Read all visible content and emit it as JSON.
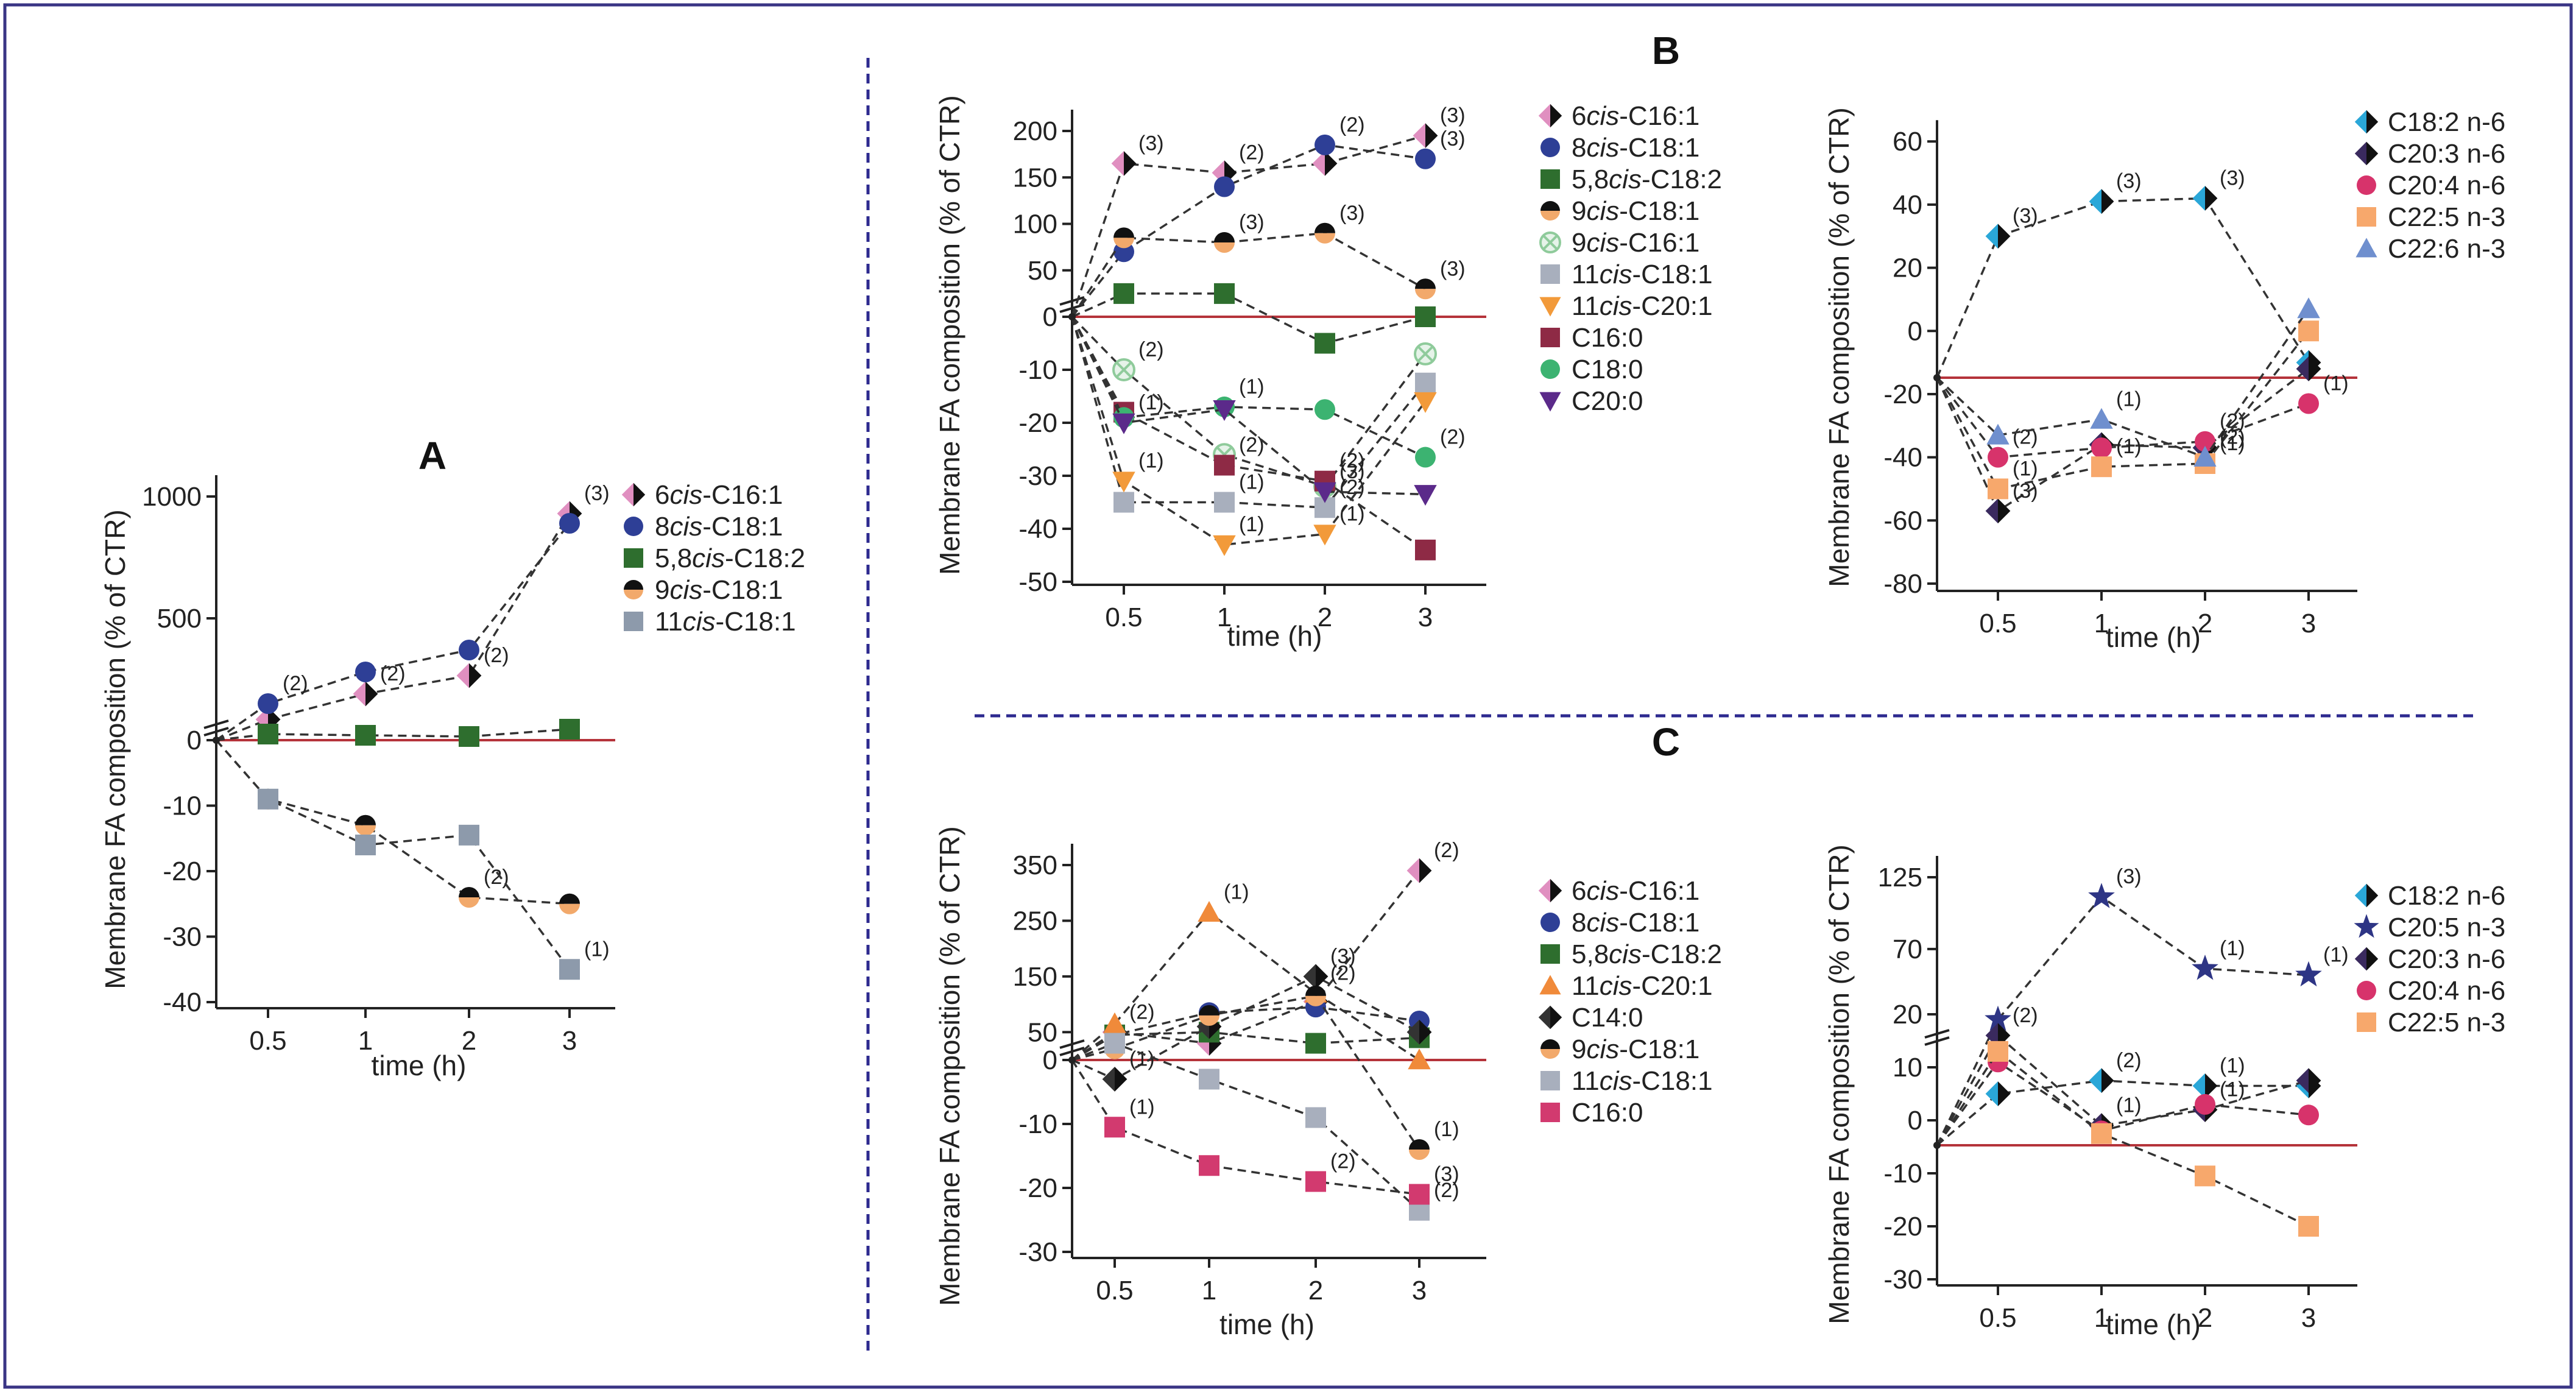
{
  "figure": {
    "panel_letters": [
      "A",
      "B",
      "C"
    ]
  },
  "chart_data": [
    {
      "id": "A",
      "type": "line",
      "panel_label": "A",
      "xlabel": "time (h)",
      "ylabel": "Membrane FA composition (% of CTR)",
      "categories": [
        "0.5",
        "1",
        "2",
        "3"
      ],
      "y_upper_ticks": [
        0,
        500,
        1000
      ],
      "y_lower_ticks": [
        -10,
        -20,
        -30,
        -40
      ],
      "upper_range": [
        0,
        1000
      ],
      "lower_range": [
        0,
        -40
      ],
      "color_scheme": "half",
      "series": [
        {
          "name": "6cis-C16:1",
          "marker": "diamond",
          "color": "#e08fc0",
          "values": [
            85,
            190,
            265,
            930
          ],
          "annotations": {
            "1": "(2)",
            "2": "(2)",
            "3": "(3)"
          }
        },
        {
          "name": "8cis-C18:1",
          "marker": "circle",
          "color": "#2e3f96",
          "values": [
            150,
            280,
            370,
            890
          ],
          "annotations": {
            "0": "(2)"
          }
        },
        {
          "name": "5,8cis-C18:2",
          "marker": "square",
          "color": "#2e6e2e",
          "values": [
            25,
            20,
            15,
            45
          ],
          "annotations": {}
        },
        {
          "name": "9cis-C18:1",
          "marker": "halfcircle",
          "color": "#f2a96b",
          "values": [
            -9,
            -13,
            -24,
            -25
          ],
          "annotations": {
            "2": "(2)"
          }
        },
        {
          "name": "11cis-C18:1",
          "marker": "square",
          "color": "#8d9aab",
          "values": [
            -9,
            -16,
            -14.5,
            -35
          ],
          "annotations": {
            "3": "(1)"
          }
        }
      ]
    },
    {
      "id": "B1",
      "type": "line",
      "panel_label": "B",
      "xlabel": "time (h)",
      "ylabel": "Membrane FA composition (% of CTR)",
      "categories": [
        "0.5",
        "1",
        "2",
        "3"
      ],
      "y_upper_ticks": [
        0,
        50,
        100,
        150,
        200
      ],
      "y_lower_ticks": [
        -10,
        -20,
        -30,
        -40,
        -50
      ],
      "upper_range": [
        0,
        200
      ],
      "lower_range": [
        0,
        -50
      ],
      "color_scheme": "half",
      "series": [
        {
          "name": "6cis-C16:1",
          "marker": "diamond",
          "color": "#e08fc0",
          "values": [
            165,
            155,
            165,
            195
          ],
          "annotations": {
            "0": "(3)",
            "1": "(2)",
            "3": "(3)"
          }
        },
        {
          "name": "8cis-C18:1",
          "marker": "circle",
          "color": "#2e3f96",
          "values": [
            70,
            140,
            185,
            170
          ],
          "annotations": {
            "2": "(2)",
            "3": "(3)"
          }
        },
        {
          "name": "5,8cis-C18:2",
          "marker": "square",
          "color": "#2e6e2e",
          "values": [
            25,
            25,
            -5,
            0
          ],
          "annotations": {}
        },
        {
          "name": "9cis-C18:1",
          "marker": "halfcircle",
          "color": "#f2a96b",
          "values": [
            85,
            80,
            90,
            30
          ],
          "annotations": {
            "1": "(3)",
            "2": "(3)",
            "3": "(3)"
          }
        },
        {
          "name": "9cis-C16:1",
          "marker": "xcircle",
          "color": "#8fcb9b",
          "values": [
            -10,
            -26,
            -32,
            -7
          ],
          "annotations": {
            "0": "(2)"
          }
        },
        {
          "name": "11cis-C18:1",
          "marker": "square",
          "color": "#a8afbd",
          "values": [
            -35,
            -35,
            -36,
            -12.5
          ],
          "annotations": {
            "1": "(1)",
            "2": "(2)"
          }
        },
        {
          "name": "11cis-C20:1",
          "marker": "triangledown",
          "color": "#f29a3a",
          "values": [
            -31,
            -43,
            -41,
            -16
          ],
          "annotations": {
            "0": "(1)",
            "1": "(1)",
            "2": "(1)"
          }
        },
        {
          "name": "C16:0",
          "marker": "square",
          "color": "#8e2a45",
          "values": [
            -18,
            -28,
            -31,
            -44
          ],
          "annotations": {
            "1": "(2)",
            "2": "(2)"
          }
        },
        {
          "name": "C18:0",
          "marker": "circle",
          "color": "#3cb371",
          "values": [
            -19,
            -17,
            -17.5,
            -26.5
          ],
          "annotations": {
            "1": "(1)",
            "3": "(2)"
          }
        },
        {
          "name": "C20:0",
          "marker": "triangledown",
          "color": "#5b2a8a",
          "values": [
            -20,
            -17.5,
            -33,
            -33.5
          ],
          "annotations": {
            "0": "(1)",
            "2": "(3)"
          }
        }
      ]
    },
    {
      "id": "B2",
      "type": "line",
      "xlabel": "time (h)",
      "ylabel": "Membrane FA composition (% of CTR)",
      "categories": [
        "0.5",
        "1",
        "2",
        "3"
      ],
      "y_ticks": [
        60,
        40,
        20,
        0,
        -20,
        -40,
        -60,
        -80
      ],
      "ylim": [
        -80,
        72
      ],
      "color_scheme": "half",
      "series": [
        {
          "name": "C18:2 n-6",
          "marker": "diamond",
          "color": "#2aa7d8",
          "values": [
            30,
            41,
            42,
            -10
          ],
          "annotations": {
            "0": "(3)",
            "1": "(3)",
            "2": "(3)"
          }
        },
        {
          "name": "C20:3 n-6",
          "marker": "diamond",
          "color": "#3a2a5e",
          "values": [
            -57,
            -36,
            -37,
            -12
          ],
          "annotations": {
            "0": "(3)"
          }
        },
        {
          "name": "C20:4 n-6",
          "marker": "circle",
          "color": "#d7336b",
          "values": [
            -40,
            -37,
            -35,
            -23
          ],
          "annotations": {
            "0": "(2)",
            "2": "(2)",
            "3": "(1)"
          }
        },
        {
          "name": "C22:5 n-3",
          "marker": "square",
          "color": "#f7a86c",
          "values": [
            -50,
            -43,
            -42,
            0
          ],
          "annotations": {
            "0": "(1)",
            "1": "(1)",
            "2": "(1)"
          }
        },
        {
          "name": "C22:6 n-3",
          "marker": "triangleup",
          "color": "#6f8fce",
          "values": [
            -33,
            -28,
            -40,
            7
          ],
          "annotations": {
            "1": "(1)",
            "2": "(2)"
          }
        }
      ]
    },
    {
      "id": "C1",
      "type": "line",
      "panel_label": "C",
      "xlabel": "time (h)",
      "ylabel": "Membrane FA composition (% of CTR)",
      "categories": [
        "0.5",
        "1",
        "2",
        "3"
      ],
      "y_upper_ticks": [
        0,
        50,
        150,
        250,
        350
      ],
      "y_lower_ticks": [
        -10,
        -20,
        -30
      ],
      "upper_range": [
        0,
        350
      ],
      "lower_range": [
        0,
        -30
      ],
      "color_scheme": "half",
      "series": [
        {
          "name": "6cis-C16:1",
          "marker": "diamond",
          "color": "#e08fc0",
          "values": [
            50,
            30,
            105,
            340
          ],
          "annotations": {
            "0": "(2)",
            "3": "(2)"
          }
        },
        {
          "name": "8cis-C18:1",
          "marker": "circle",
          "color": "#2e3f96",
          "values": [
            45,
            85,
            95,
            70
          ],
          "annotations": {}
        },
        {
          "name": "5,8cis-C18:2",
          "marker": "square",
          "color": "#2e6e2e",
          "values": [
            45,
            50,
            30,
            40
          ],
          "annotations": {}
        },
        {
          "name": "11cis-C20:1",
          "marker": "triangleup",
          "color": "#f08a3a",
          "values": [
            65,
            265,
            120,
            0
          ],
          "annotations": {
            "1": "(1)",
            "2": "(2)"
          }
        },
        {
          "name": "C14:0",
          "marker": "diamond",
          "color": "#333333",
          "values": [
            -3,
            60,
            150,
            50
          ],
          "annotations": {
            "0": "(1)",
            "2": "(3)"
          }
        },
        {
          "name": "9cis-C18:1",
          "marker": "halfcircle",
          "color": "#f2a96b",
          "values": [
            20,
            80,
            115,
            -14
          ],
          "annotations": {
            "3": "(1)"
          }
        },
        {
          "name": "11cis-C18:1",
          "marker": "square",
          "color": "#a8afbd",
          "values": [
            30,
            -3,
            -9,
            -23.5
          ],
          "annotations": {
            "3": "(2)"
          }
        },
        {
          "name": "C16:0",
          "marker": "square",
          "color": "#d23a6f",
          "values": [
            -10.5,
            -16.5,
            -19,
            -21
          ],
          "annotations": {
            "0": "(1)",
            "2": "(2)",
            "3": "(3)"
          }
        }
      ]
    },
    {
      "id": "C2",
      "type": "line",
      "xlabel": "time (h)",
      "ylabel": "Membrane FA composition (% of CTR)",
      "categories": [
        "0.5",
        "1",
        "2",
        "3"
      ],
      "y_upper_ticks": [
        20,
        70,
        125
      ],
      "y_lower_ticks": [
        10,
        0,
        -10,
        -20,
        -30
      ],
      "upper_range": [
        20,
        125
      ],
      "lower_range": [
        20,
        -30
      ],
      "color_scheme": "half",
      "series": [
        {
          "name": "C18:2 n-6",
          "marker": "diamond",
          "color": "#2aa7d8",
          "values": [
            5,
            7.5,
            6.5,
            6.5
          ],
          "annotations": {
            "1": "(2)",
            "2": "(1)"
          }
        },
        {
          "name": "C20:5 n-3",
          "marker": "star",
          "color": "#2e3585",
          "values": [
            19,
            110,
            55,
            50
          ],
          "annotations": {
            "1": "(3)",
            "2": "(1)",
            "3": "(1)"
          }
        },
        {
          "name": "C20:3 n-6",
          "marker": "diamond",
          "color": "#3a2a5e",
          "values": [
            16,
            -1,
            2,
            7.5
          ],
          "annotations": {
            "0": "(2)",
            "1": "(1)",
            "2": "(1)"
          }
        },
        {
          "name": "C20:4 n-6",
          "marker": "circle",
          "color": "#d7336b",
          "values": [
            11,
            -2,
            3,
            1
          ],
          "annotations": {}
        },
        {
          "name": "C22:5 n-3",
          "marker": "square",
          "color": "#f7a86c",
          "values": [
            13,
            -2.5,
            -10.5,
            -20
          ],
          "annotations": {}
        }
      ]
    }
  ]
}
